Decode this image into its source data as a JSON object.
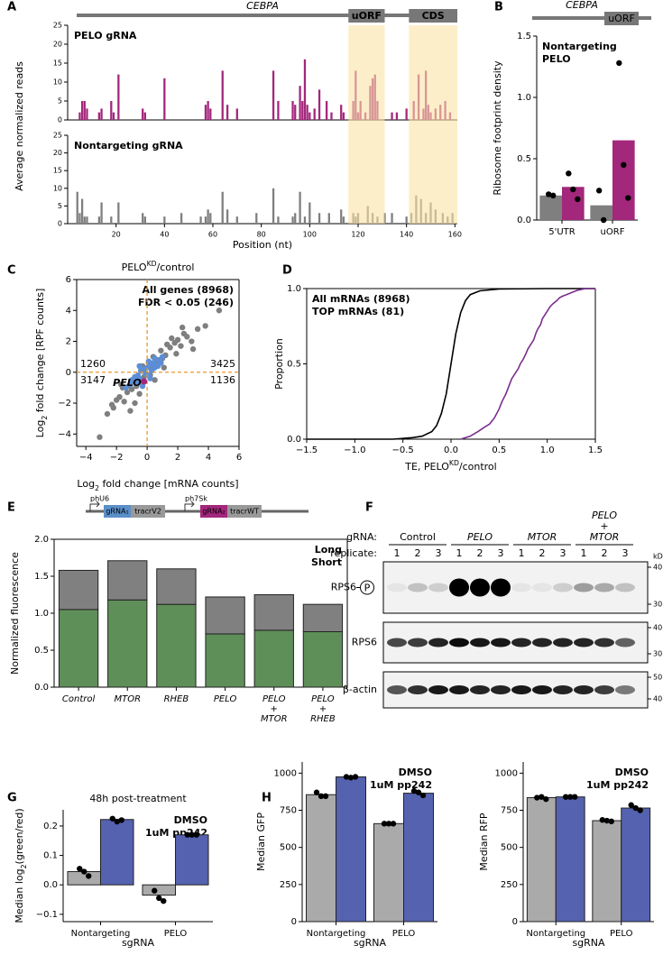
{
  "panels": [
    "A",
    "B",
    "C",
    "D",
    "E",
    "F",
    "G",
    "H"
  ],
  "chart_data": [
    {
      "type": "bar",
      "title": "PELO gRNA",
      "color": "#a3277b",
      "ylabel": "Average normalized reads",
      "gene": "CEBPA",
      "regions": [
        {
          "label": "uORF",
          "start": 116,
          "end": 131
        },
        {
          "label": "CDS",
          "start": 141,
          "end": 161
        }
      ],
      "region_color": "#fbe3a6",
      "x": [
        5,
        6,
        7,
        8,
        13,
        14,
        18,
        19,
        21,
        31,
        32,
        40,
        57,
        58,
        59,
        64,
        66,
        70,
        85,
        87,
        93,
        94,
        96,
        97,
        98,
        99,
        100,
        102,
        104,
        107,
        109,
        113,
        114,
        118,
        119,
        120,
        121,
        123,
        125,
        126,
        127,
        128,
        134,
        136,
        140,
        143,
        145,
        147,
        148,
        149,
        150,
        152,
        154,
        156,
        158
      ],
      "values": [
        2,
        5,
        5,
        3,
        2,
        3,
        5,
        2,
        12,
        3,
        2,
        11,
        4,
        5,
        3,
        13,
        4,
        3,
        13,
        5,
        5,
        4,
        9,
        5,
        16,
        4,
        2,
        3,
        8,
        5,
        2,
        4,
        2,
        5,
        13,
        2,
        5,
        2,
        9,
        11,
        12,
        5,
        2,
        2,
        3,
        5,
        12,
        3,
        13,
        4,
        2,
        3,
        4,
        5,
        2
      ],
      "xlim": [
        0,
        161
      ],
      "ylim": [
        0,
        25
      ],
      "yticks": [
        0,
        5,
        10,
        15,
        20,
        25
      ]
    },
    {
      "type": "bar",
      "title": "Nontargeting gRNA",
      "color": "#7f7f7f",
      "xlabel": "Position (nt)",
      "x": [
        4,
        5,
        6,
        7,
        8,
        13,
        14,
        18,
        21,
        31,
        32,
        40,
        47,
        55,
        57,
        58,
        59,
        64,
        66,
        70,
        78,
        85,
        87,
        93,
        94,
        96,
        98,
        100,
        104,
        108,
        113,
        114,
        118,
        119,
        120,
        124,
        126,
        128,
        131,
        134,
        140,
        142,
        144,
        146,
        148,
        150,
        152,
        155,
        157,
        159
      ],
      "values": [
        9,
        3,
        7,
        2,
        2,
        2,
        6,
        2,
        6,
        3,
        2,
        2,
        3,
        2,
        2,
        4,
        3,
        9,
        4,
        2,
        3,
        10,
        2,
        2,
        3,
        9,
        2,
        6,
        3,
        3,
        4,
        2,
        3,
        2,
        3,
        5,
        3,
        2,
        3,
        3,
        2,
        3,
        8,
        7,
        3,
        6,
        4,
        3,
        2,
        3
      ],
      "xlim": [
        0,
        161
      ],
      "xticks": [
        20,
        40,
        60,
        80,
        100,
        120,
        140,
        160
      ],
      "ylim": [
        0,
        25
      ],
      "yticks": [
        0,
        5,
        10,
        15,
        20,
        25
      ]
    },
    {
      "type": "bar",
      "header": {
        "gene": "CEBPA",
        "feature": "uORF"
      },
      "ylabel": "Ribosome footprint density",
      "categories": [
        "5'UTR",
        "uORF"
      ],
      "legend": "upper left",
      "series": [
        {
          "name": "Nontargeting",
          "color": "#7f7f7f",
          "values": [
            0.2,
            0.12
          ],
          "points": [
            [
              0.21,
              0.2
            ],
            [
              0.24,
              0
            ]
          ]
        },
        {
          "name": "PELO",
          "color": "#a3277b",
          "values": [
            0.27,
            0.65
          ],
          "points": [
            [
              0.38,
              0.25,
              0.17
            ],
            [
              1.28,
              0.45,
              0.18
            ]
          ]
        }
      ],
      "ylim": [
        0,
        1.5
      ],
      "yticks": [
        {
          "value": 0,
          "label": "0.0"
        },
        0.5,
        {
          "value": 1,
          "label": "1.0"
        },
        1.5
      ]
    },
    {
      "type": "scatter",
      "title": {
        "base": "PELO",
        "sup": "KD",
        "rest": "/control"
      },
      "xlabel": {
        "base": "Log",
        "sub": "2",
        "rest": " fold change [mRNA counts]"
      },
      "ylabel": {
        "base": "Log",
        "sub": "2",
        "rest": " fold change [RPF counts]"
      },
      "legend": "upper right",
      "series": [
        {
          "name": "All genes (8968)",
          "color": "#7f7f7f",
          "x": [
            -3.1,
            -2.6,
            -2.3,
            -2.0,
            -1.8,
            -1.6,
            -1.5,
            -1.3,
            -1.2,
            -1.0,
            -0.9,
            -0.8,
            -0.6,
            -0.5,
            -0.3,
            -0.2,
            0.1,
            0.3,
            0.4,
            0.6,
            0.8,
            0.9,
            1.0,
            1.2,
            1.3,
            1.5,
            1.6,
            1.8,
            2.0,
            2.2,
            2.4,
            2.6,
            2.9,
            3.3,
            3.8,
            4.7,
            -0.7,
            0.5,
            1.1,
            1.9,
            2.3,
            -1.1,
            -2.2,
            -0.4,
            0.2,
            3.0,
            -1.7
          ],
          "y": [
            -4.2,
            -2.7,
            -2.1,
            -1.8,
            -1.6,
            -1.0,
            -1.9,
            -1.3,
            -0.9,
            -1.1,
            -0.6,
            -2.0,
            -0.4,
            -1.4,
            0.4,
            -0.3,
            0.6,
            0.2,
            1.0,
            0.5,
            0.8,
            1.4,
            0.9,
            1.1,
            1.8,
            1.6,
            2.2,
            1.9,
            2.1,
            1.7,
            2.5,
            2.3,
            2.0,
            2.8,
            3.0,
            4.0,
            -0.9,
            -0.5,
            0.3,
            1.2,
            2.9,
            -2.5,
            -2.3,
            0.1,
            -0.2,
            1.5,
            -0.8
          ]
        },
        {
          "name": "FDR < 0.05 (246)",
          "color": "#5b8ed6",
          "x": [
            -1.4,
            -1.1,
            -0.9,
            -0.7,
            -0.6,
            -0.5,
            -0.4,
            -0.3,
            -0.2,
            -0.1,
            0,
            0.1,
            0.2,
            0.3,
            0.4,
            0.5,
            0.6,
            0.7,
            0.8,
            1.0,
            -0.8,
            -0.3,
            0.2,
            0.5,
            -1.0,
            0.9,
            -0.5,
            0.1
          ],
          "y": [
            -1.0,
            -0.8,
            -0.5,
            -0.7,
            -0.2,
            -0.4,
            0.1,
            -0.6,
            0.2,
            -0.1,
            0.3,
            -0.2,
            0.5,
            0.1,
            0.6,
            0.3,
            0.8,
            0.4,
            0.7,
            1.0,
            -0.3,
            -0.9,
            -0.4,
            0.9,
            -0.5,
            0.6,
            0.4,
            0.7
          ]
        }
      ],
      "highlight": {
        "label": "PELO",
        "x": -0.2,
        "y": -0.6,
        "color": "#a3277b"
      },
      "reflines": {
        "x": 0,
        "y": 0,
        "color": "#e8962e"
      },
      "quadrant_counts": [
        1260,
        3425,
        3147,
        1136
      ],
      "xlim": [
        -4.6,
        6
      ],
      "ylim": [
        -4.8,
        6
      ],
      "xticks": [
        {
          "value": -4,
          "label": "−4"
        },
        {
          "value": -2,
          "label": "−2"
        },
        0,
        2,
        4,
        6
      ],
      "yticks": [
        {
          "value": -4,
          "label": "−4"
        },
        {
          "value": -2,
          "label": "−2"
        },
        0,
        2,
        4,
        6
      ]
    },
    {
      "type": "line",
      "xlabel": {
        "base": "TE, PELO",
        "sup": "KD",
        "rest": "/control"
      },
      "ylabel": "Proportion",
      "legend": "upper left",
      "series": [
        {
          "name": "All mRNAs (8968)",
          "color": "#000000",
          "x": [
            -1.5,
            -0.6,
            -0.4,
            -0.3,
            -0.2,
            -0.15,
            -0.1,
            -0.05,
            0,
            0.05,
            0.1,
            0.15,
            0.2,
            0.3,
            0.5,
            1.0,
            1.5
          ],
          "y": [
            0,
            0,
            0.01,
            0.02,
            0.05,
            0.09,
            0.17,
            0.3,
            0.5,
            0.7,
            0.84,
            0.92,
            0.96,
            0.985,
            0.997,
            1,
            1
          ]
        },
        {
          "name": "TOP mRNAs (81)",
          "color": "#7b2d8e",
          "x": [
            0.1,
            0.2,
            0.28,
            0.35,
            0.4,
            0.45,
            0.5,
            0.53,
            0.57,
            0.6,
            0.63,
            0.66,
            0.7,
            0.72,
            0.75,
            0.78,
            0.8,
            0.83,
            0.86,
            0.88,
            0.9,
            0.93,
            0.95,
            0.98,
            1.0,
            1.03,
            1.06,
            1.1,
            1.13,
            1.16,
            1.2,
            1.24,
            1.28,
            1.32,
            1.36,
            1.4,
            1.5
          ],
          "y": [
            0,
            0.02,
            0.05,
            0.08,
            0.1,
            0.14,
            0.2,
            0.25,
            0.3,
            0.35,
            0.4,
            0.43,
            0.47,
            0.5,
            0.53,
            0.57,
            0.6,
            0.63,
            0.66,
            0.7,
            0.73,
            0.76,
            0.8,
            0.83,
            0.85,
            0.88,
            0.9,
            0.92,
            0.94,
            0.95,
            0.96,
            0.97,
            0.98,
            0.99,
            0.995,
            1,
            1
          ]
        }
      ],
      "xlim": [
        -1.5,
        1.5
      ],
      "ylim": [
        0,
        1
      ],
      "xticks": [
        {
          "value": -1.5,
          "label": "−1.5"
        },
        {
          "value": -1,
          "label": "−1.0"
        },
        {
          "value": -0.5,
          "label": "−0.5"
        },
        {
          "value": 0,
          "label": "0.0"
        },
        0.5,
        {
          "value": 1,
          "label": "1.0"
        },
        1.5
      ],
      "yticks": [
        {
          "value": 0,
          "label": "0.0"
        },
        0.5,
        {
          "value": 1,
          "label": "1.0"
        }
      ]
    },
    {
      "type": "bar",
      "stacked": true,
      "ylabel": "Normalized fluorescence",
      "legend": "upper right",
      "construct": [
        "phU6",
        "gRNA₁",
        "tracrV2",
        "ph7Sk",
        "gRNA₂",
        "tracrWT"
      ],
      "categories": [
        "Control",
        "MTOR",
        "RHEB",
        "PELO",
        "PELO\n+\nMTOR",
        "PELO\n+\nRHEB"
      ],
      "series": [
        {
          "name": "Long",
          "color": "#5e8f58",
          "values": [
            1.05,
            1.18,
            1.12,
            0.72,
            0.77,
            0.75
          ]
        },
        {
          "name": "Short",
          "color": "#808080",
          "values": [
            0.53,
            0.53,
            0.48,
            0.5,
            0.48,
            0.37
          ]
        }
      ],
      "ylim": [
        0,
        2
      ],
      "yticks": [
        {
          "value": 0,
          "label": "0.0"
        },
        0.5,
        {
          "value": 1,
          "label": "1.0"
        },
        1.5,
        {
          "value": 2,
          "label": "2.0"
        }
      ]
    },
    {
      "type": "bar",
      "title": "48h post-treatment",
      "xlabel": "sgRNA",
      "ylabel": {
        "base": "Median log",
        "sub": "2",
        "rest": "(green/red)"
      },
      "legend": "upper right",
      "categories": [
        "Nontargeting",
        "PELO"
      ],
      "series": [
        {
          "name": "DMSO",
          "color": "#aaaaaa",
          "values": [
            0.045,
            -0.035
          ],
          "points": [
            [
              0.055,
              0.045,
              0.03
            ],
            [
              -0.02,
              -0.045,
              -0.055
            ]
          ]
        },
        {
          "name": "1uM pp242",
          "color": "#5562b0",
          "values": [
            0.222,
            0.17
          ],
          "points": [
            [
              0.225,
              0.215,
              0.22
            ],
            [
              0.17,
              0.17,
              0.17
            ]
          ]
        }
      ],
      "ylim": [
        -0.125,
        0.255
      ],
      "yticks": [
        {
          "value": -0.1,
          "label": "−0.1"
        },
        {
          "value": 0,
          "label": "0.0"
        },
        0.1,
        0.2
      ]
    },
    {
      "type": "bar",
      "xlabel": "sgRNA",
      "ylabel": "Median GFP",
      "legend": "upper right",
      "categories": [
        "Nontargeting",
        "PELO"
      ],
      "series": [
        {
          "name": "DMSO",
          "color": "#aaaaaa",
          "values": [
            855,
            660
          ],
          "points": [
            [
              870,
              845,
              845
            ],
            [
              660,
              660,
              660
            ]
          ]
        },
        {
          "name": "1uM pp242",
          "color": "#5562b0",
          "values": [
            975,
            865
          ],
          "points": [
            [
              975,
              970,
              975
            ],
            [
              880,
              870,
              850
            ]
          ]
        }
      ],
      "ylim": [
        0,
        1075
      ],
      "yticks": [
        0,
        250,
        500,
        750,
        1000
      ]
    },
    {
      "type": "bar",
      "xlabel": "sgRNA",
      "ylabel": "Median RFP",
      "legend": "upper right",
      "categories": [
        "Nontargeting",
        "PELO"
      ],
      "series": [
        {
          "name": "DMSO",
          "color": "#aaaaaa",
          "values": [
            835,
            680
          ],
          "points": [
            [
              835,
              840,
              825
            ],
            [
              685,
              680,
              675
            ]
          ]
        },
        {
          "name": "1uM pp242",
          "color": "#5562b0",
          "values": [
            840,
            765
          ],
          "points": [
            [
              840,
              840,
              840
            ],
            [
              785,
              765,
              750
            ]
          ]
        }
      ],
      "ylim": [
        0,
        1075
      ],
      "yticks": [
        0,
        250,
        500,
        750,
        1000
      ]
    }
  ],
  "blot": {
    "row_label": "gRNA:",
    "groups": [
      "Control",
      "PELO",
      "MTOR",
      "PELO\n+\nMTOR"
    ],
    "replicate_label": "replicate:",
    "replicates": [
      1,
      2,
      3,
      1,
      2,
      3,
      1,
      2,
      3,
      1,
      2,
      3
    ],
    "unit": "kD",
    "rows": [
      {
        "label": "RPS6",
        "badge": "P",
        "markers": [
          40,
          30
        ]
      },
      {
        "label": "RPS6",
        "markers": [
          40,
          30
        ]
      },
      {
        "label": "β-actin",
        "markers": [
          50,
          40
        ]
      }
    ]
  }
}
